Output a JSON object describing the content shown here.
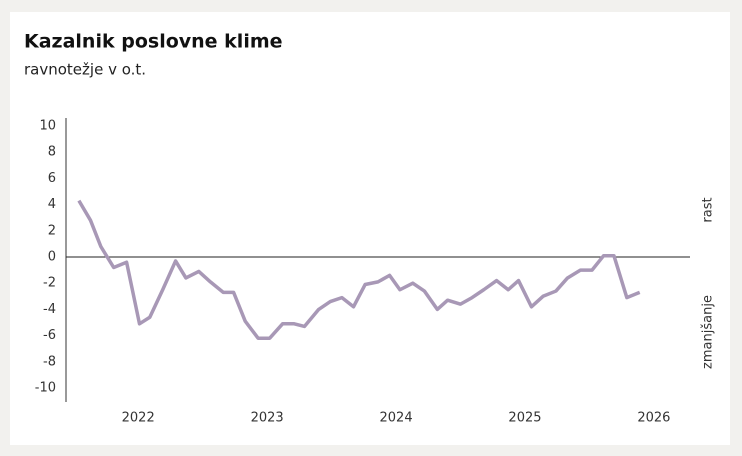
{
  "chart_data": {
    "type": "line",
    "title": "Kazalnik poslovne klime",
    "subtitle": "ravnotežje v o.t.",
    "annotations": [
      "rast",
      "zmanjšanje"
    ],
    "x": [
      2021.54,
      2021.63,
      2021.71,
      2021.81,
      2021.91,
      2022.01,
      2022.09,
      2022.19,
      2022.29,
      2022.37,
      2022.47,
      2022.56,
      2022.66,
      2022.74,
      2022.83,
      2022.93,
      2023.02,
      2023.12,
      2023.21,
      2023.29,
      2023.4,
      2023.49,
      2023.58,
      2023.67,
      2023.76,
      2023.86,
      2023.95,
      2024.03,
      2024.13,
      2024.22,
      2024.32,
      2024.4,
      2024.5,
      2024.59,
      2024.68,
      2024.78,
      2024.87,
      2024.95,
      2025.05,
      2025.14,
      2025.24,
      2025.33,
      2025.43,
      2025.52,
      2025.61,
      2025.69,
      2025.79,
      2025.89
    ],
    "series": [
      {
        "name": "Kazalnik poslovne klime",
        "color": "#a898b6",
        "values": [
          4.3,
          2.8,
          0.8,
          -0.8,
          -0.4,
          -5.1,
          -4.6,
          -2.5,
          -0.3,
          -1.6,
          -1.1,
          -1.9,
          -2.7,
          -2.7,
          -4.9,
          -6.2,
          -6.2,
          -5.1,
          -5.1,
          -5.3,
          -4.0,
          -3.4,
          -3.1,
          -3.8,
          -2.1,
          -1.9,
          -1.4,
          -2.5,
          -2.0,
          -2.6,
          -4.0,
          -3.3,
          -3.6,
          -3.1,
          -2.5,
          -1.8,
          -2.5,
          -1.8,
          -3.8,
          -3.0,
          -2.6,
          -1.6,
          -1.0,
          -1.0,
          0.1,
          0.1,
          -3.1,
          -2.7
        ]
      }
    ],
    "xlim": [
      2021.44,
      2026.28
    ],
    "xticks": [
      2022,
      2023,
      2024,
      2025,
      2026
    ],
    "ylim": [
      -10,
      10
    ],
    "yticks": [
      -10,
      -8,
      -6,
      -4,
      -2,
      0,
      2,
      4,
      6,
      8,
      10
    ]
  }
}
